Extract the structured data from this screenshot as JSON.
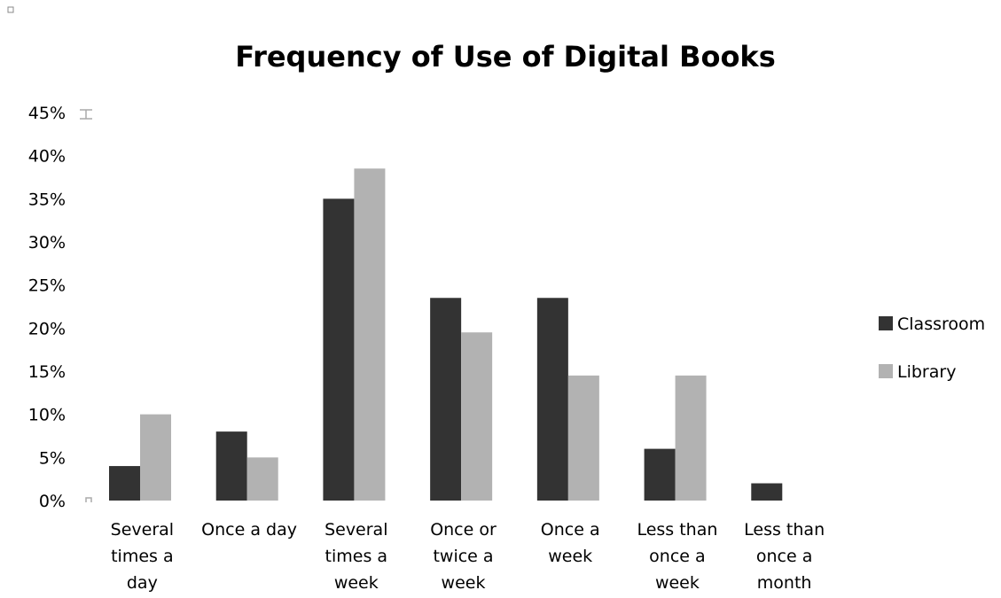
{
  "chart_data": {
    "type": "bar",
    "title": "Frequency of Use of Digital Books",
    "xlabel": "",
    "ylabel": "",
    "ylim": [
      0,
      0.45
    ],
    "y_ticks": [
      0,
      0.05,
      0.1,
      0.15,
      0.2,
      0.25,
      0.3,
      0.35,
      0.4,
      0.45
    ],
    "y_tick_labels": [
      "0%",
      "5%",
      "10%",
      "15%",
      "20%",
      "25%",
      "30%",
      "35%",
      "40%",
      "45%"
    ],
    "categories": [
      [
        "Several",
        "times a",
        "day"
      ],
      [
        "Once a day"
      ],
      [
        "Several",
        "times a",
        "week"
      ],
      [
        "Once or",
        "twice a",
        "week"
      ],
      [
        "Once a",
        "week"
      ],
      [
        "Less than",
        "once a",
        "week"
      ],
      [
        "Less than",
        "once a",
        "month"
      ]
    ],
    "series": [
      {
        "name": "Classroom",
        "color": "#333333",
        "values": [
          0.04,
          0.08,
          0.35,
          0.235,
          0.235,
          0.06,
          0.02
        ]
      },
      {
        "name": "Library",
        "color": "#b2b2b2",
        "values": [
          0.1,
          0.05,
          0.385,
          0.195,
          0.145,
          0.145,
          0.0
        ]
      }
    ],
    "grid": false,
    "legend_position": "right"
  }
}
